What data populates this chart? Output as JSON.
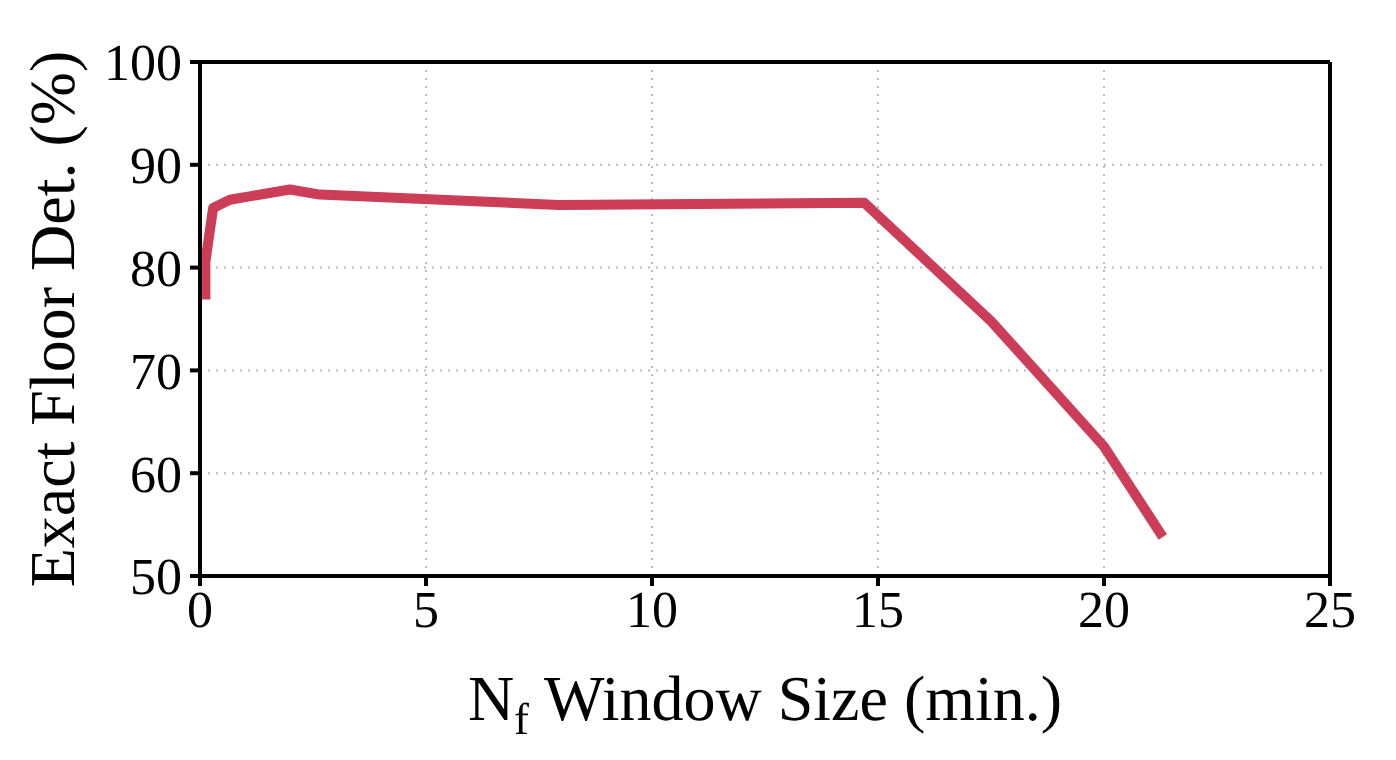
{
  "chart_data": {
    "type": "line",
    "xlabel": "N$_{f}$ Window Size (min.)",
    "ylabel": "Exact Floor Det. (%)",
    "xlim": [
      0,
      25
    ],
    "xticks": [
      0,
      5,
      10,
      15,
      20,
      25
    ],
    "ylim": [
      50,
      100
    ],
    "yticks": [
      50,
      60,
      70,
      80,
      90,
      100
    ],
    "grid": true,
    "marker": "none",
    "line_style": "solid",
    "series": [
      {
        "color": "#cc3d57",
        "x": [
          0.12,
          0.12,
          0.29,
          0.66,
          1.99,
          2.65,
          7.94,
          14.7,
          17.5,
          20.0,
          21.3
        ],
        "values": [
          76.9,
          80.6,
          85.8,
          86.6,
          87.6,
          87.1,
          86.1,
          86.3,
          74.8,
          62.6,
          53.8
        ]
      }
    ]
  }
}
